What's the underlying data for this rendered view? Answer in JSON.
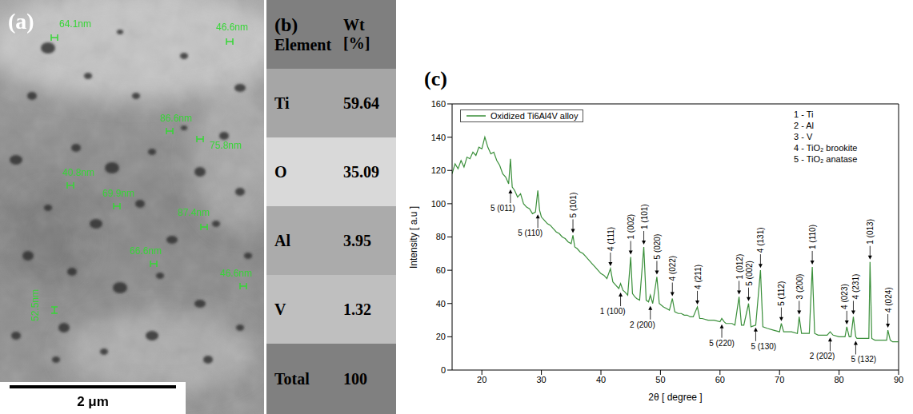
{
  "image": {
    "label": "(a)",
    "measurements": [
      "64.1nm",
      "46.6nm",
      "86.6nm",
      "75.8nm",
      "40.8nm",
      "69.9nm",
      "87.4nm",
      "66.6nm",
      "46.6nm",
      "52.5nm"
    ],
    "scale_bar": "2 μm"
  },
  "table": {
    "label": "(b)",
    "header": [
      "Element",
      "Wt [%]"
    ],
    "rows": [
      [
        "Ti",
        59.64
      ],
      [
        "O",
        35.09
      ],
      [
        "Al",
        3.95
      ],
      [
        "V",
        1.32
      ],
      [
        "Total",
        100
      ]
    ]
  },
  "chart_data": {
    "type": "line",
    "title": "(c)",
    "x_label": "2θ [ degree ]",
    "y_label": "Intensity [ a.u ]",
    "x": [
      15,
      15.5,
      16,
      16.5,
      17,
      17.5,
      18,
      18.5,
      19,
      19.5,
      20,
      20.5,
      21,
      21.5,
      22,
      22.5,
      23,
      23.5,
      24,
      24.5,
      24.8,
      25.1,
      25.5,
      26,
      26.5,
      27,
      27.5,
      28,
      28.5,
      29,
      29.4,
      29.7,
      30,
      30.5,
      31,
      31.5,
      32,
      32.5,
      33,
      33.5,
      34,
      34.5,
      35,
      35.3,
      35.6,
      36,
      36.5,
      37,
      37.5,
      38,
      38.5,
      39,
      39.5,
      40,
      40.5,
      41,
      41.6,
      42,
      42.5,
      43,
      43.3,
      43.7,
      44,
      44.5,
      45,
      45.3,
      45.7,
      46,
      46.5,
      47.2,
      47.6,
      48,
      48.3,
      48.7,
      49.4,
      49.8,
      50.5,
      51,
      51.5,
      52,
      52.4,
      53,
      53.5,
      54,
      54.5,
      55,
      55.5,
      56.2,
      56.6,
      57,
      58,
      59,
      60,
      60.3,
      60.7,
      61,
      62,
      62.5,
      63.2,
      63.6,
      64,
      64.8,
      65.2,
      66,
      66.8,
      67.2,
      68,
      69,
      70,
      70.3,
      70.7,
      71,
      72,
      73,
      73.3,
      73.7,
      74,
      75,
      75.5,
      75.9,
      76.5,
      77,
      78,
      78.5,
      79,
      80,
      81,
      81.3,
      81.7,
      82,
      82.4,
      82.8,
      83,
      84,
      85,
      85.2,
      85.5,
      86,
      87,
      88,
      88.2,
      88.6,
      89,
      90
    ],
    "series": [
      {
        "name": "Oxidized Ti6Al4V alloy",
        "color": "#3a8f3a",
        "values": [
          118,
          124,
          121,
          126,
          122,
          128,
          127,
          131,
          129,
          134,
          133,
          140,
          134,
          130,
          131,
          126,
          123,
          118,
          116,
          112,
          127,
          110,
          108,
          104,
          106,
          100,
          98,
          97,
          94,
          95,
          108,
          96,
          92,
          90,
          88,
          87,
          85,
          83,
          82,
          80,
          79,
          77,
          76,
          81,
          74,
          73,
          71,
          70,
          68,
          66,
          64,
          62,
          60,
          58,
          57,
          55,
          61,
          53,
          51,
          49,
          52,
          48,
          47,
          45,
          68,
          46,
          44,
          43,
          42,
          74,
          42,
          41,
          45,
          40,
          56,
          40,
          38,
          37,
          36,
          43,
          35,
          34,
          34,
          33,
          33,
          32,
          32,
          38,
          31,
          31,
          30,
          30,
          29,
          31,
          29,
          28,
          28,
          27,
          44,
          27,
          27,
          40,
          26,
          27,
          60,
          26,
          25,
          24,
          23,
          28,
          23,
          23,
          23,
          22,
          32,
          22,
          22,
          22,
          62,
          22,
          21,
          21,
          21,
          23,
          21,
          20,
          20,
          26,
          20,
          20,
          32,
          20,
          19,
          19,
          19,
          65,
          19,
          18,
          18,
          18,
          24,
          18,
          17,
          17
        ]
      }
    ],
    "xlim": [
      15,
      90
    ],
    "xticks": [
      20,
      30,
      40,
      50,
      60,
      70,
      80,
      90
    ],
    "ylim": [
      0,
      160
    ],
    "yticks": [
      0,
      20,
      40,
      60,
      80,
      100,
      120,
      140,
      160
    ],
    "grid": false,
    "legend": "upper left",
    "phase_key": [
      "1 - Ti",
      "2 - Al",
      "3 - V",
      "4 - TiO₂ brookite",
      "5 - TiO₂ anatase"
    ],
    "annotations": [
      {
        "text": "5 (011)",
        "x": 24.8
      },
      {
        "text": "5 (110)",
        "x": 29.4
      },
      {
        "text": "5 (101)",
        "x": 35.3
      },
      {
        "text": "4 (111)",
        "x": 41.6
      },
      {
        "text": "1 (100)",
        "x": 43.3
      },
      {
        "text": "1 (002)",
        "x": 45
      },
      {
        "text": "1 (101)",
        "x": 47.2
      },
      {
        "text": "2 (200)",
        "x": 48.3
      },
      {
        "text": "5 (020)",
        "x": 49.4
      },
      {
        "text": "4 (022)",
        "x": 52
      },
      {
        "text": "4 (211)",
        "x": 56.2
      },
      {
        "text": "5 (220)",
        "x": 60.3
      },
      {
        "text": "1 (012)",
        "x": 63.2
      },
      {
        "text": "5 (002)",
        "x": 64.8
      },
      {
        "text": "5 (130)",
        "x": 66
      },
      {
        "text": "4 (131)",
        "x": 66.8
      },
      {
        "text": "5 (112)",
        "x": 70.3
      },
      {
        "text": "3 (200)",
        "x": 73.3
      },
      {
        "text": "1 (110)",
        "x": 75.5
      },
      {
        "text": "2 (202)",
        "x": 78.5
      },
      {
        "text": "4 (023)",
        "x": 81.3
      },
      {
        "text": "4 (231)",
        "x": 82.4
      },
      {
        "text": "5 (132)",
        "x": 82.8
      },
      {
        "text": "1 (013)",
        "x": 85.2
      },
      {
        "text": "4 (024)",
        "x": 88.2
      }
    ]
  }
}
